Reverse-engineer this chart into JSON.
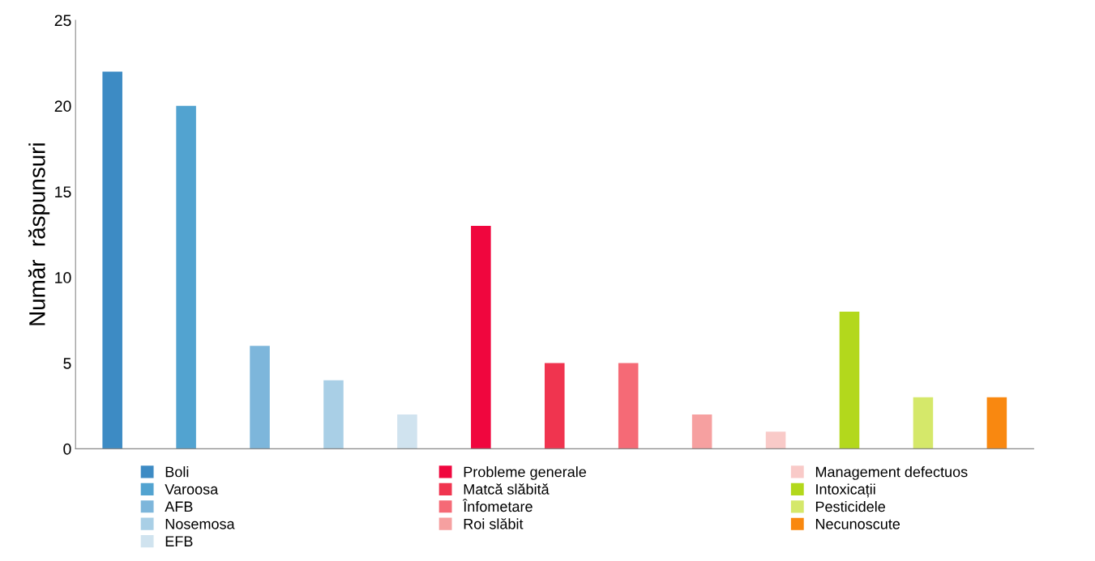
{
  "chart_data": {
    "type": "bar",
    "ylabel": "Număr  răspunsuri",
    "categories": [
      null,
      null,
      null,
      null,
      null,
      null,
      null,
      null,
      null,
      null,
      null,
      null,
      null
    ],
    "series": [
      {
        "name": "Boli",
        "color": "#3d8bc4",
        "values": [
          22,
          null,
          null,
          null,
          null,
          null,
          null,
          null,
          null,
          null,
          null,
          null,
          null
        ]
      },
      {
        "name": "Varoosa",
        "color": "#52a3d0",
        "values": [
          null,
          20,
          null,
          null,
          null,
          null,
          null,
          null,
          null,
          null,
          null,
          null,
          null
        ]
      },
      {
        "name": "AFB",
        "color": "#7db6db",
        "values": [
          null,
          null,
          6,
          null,
          null,
          null,
          null,
          null,
          null,
          null,
          null,
          null,
          null
        ]
      },
      {
        "name": "Nosemosa",
        "color": "#a9cfe6",
        "values": [
          null,
          null,
          null,
          4,
          null,
          null,
          null,
          null,
          null,
          null,
          null,
          null,
          null
        ]
      },
      {
        "name": "EFB",
        "color": "#d0e3ef",
        "values": [
          null,
          null,
          null,
          null,
          2,
          null,
          null,
          null,
          null,
          null,
          null,
          null,
          null
        ]
      },
      {
        "name": "Probleme generale",
        "color": "#f0063e",
        "values": [
          null,
          null,
          null,
          null,
          null,
          13,
          null,
          null,
          null,
          null,
          null,
          null,
          null
        ]
      },
      {
        "name": "Matcă slăbită",
        "color": "#f0344f",
        "values": [
          null,
          null,
          null,
          null,
          null,
          null,
          5,
          null,
          null,
          null,
          null,
          null,
          null
        ]
      },
      {
        "name": "Înfometare",
        "color": "#f56a76",
        "values": [
          null,
          null,
          null,
          null,
          null,
          null,
          null,
          5,
          null,
          null,
          null,
          null,
          null
        ]
      },
      {
        "name": "Roi slăbit",
        "color": "#f6a0a0",
        "values": [
          null,
          null,
          null,
          null,
          null,
          null,
          null,
          null,
          2,
          null,
          null,
          null,
          null
        ]
      },
      {
        "name": "Management defectuos",
        "color": "#f9cac8",
        "values": [
          null,
          null,
          null,
          null,
          null,
          null,
          null,
          null,
          null,
          1,
          null,
          null,
          null
        ]
      },
      {
        "name": "Intoxicații",
        "color": "#b3d81c",
        "values": [
          null,
          null,
          null,
          null,
          null,
          null,
          null,
          null,
          null,
          null,
          8,
          null,
          null
        ]
      },
      {
        "name": "Pesticidele",
        "color": "#d5e86a",
        "values": [
          null,
          null,
          null,
          null,
          null,
          null,
          null,
          null,
          null,
          null,
          null,
          3,
          null
        ]
      },
      {
        "name": "Necunoscute",
        "color": "#f98810",
        "values": [
          null,
          null,
          null,
          null,
          null,
          null,
          null,
          null,
          null,
          null,
          null,
          null,
          3
        ]
      }
    ],
    "ylim": [
      0,
      25
    ],
    "yticks": [
      0,
      5,
      10,
      15,
      20,
      25
    ],
    "tick_labels": "y",
    "grid": false,
    "legend": "bottom"
  }
}
